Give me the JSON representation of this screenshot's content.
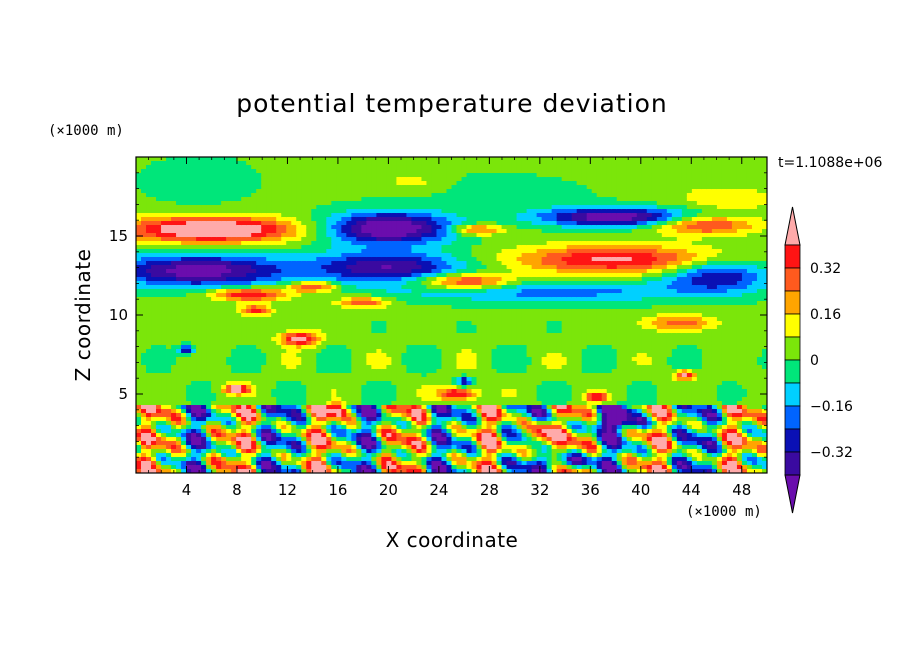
{
  "chart_data": {
    "type": "heatmap",
    "title": "potential temperature deviation",
    "xlabel": "X coordinate",
    "ylabel": "Z coordinate",
    "x_unit": "(×1000 m)",
    "y_unit": "(×1000 m)",
    "time_label": "t=1.1088e+06",
    "xlim": [
      0,
      50
    ],
    "ylim": [
      0,
      20
    ],
    "x_ticks": [
      4,
      8,
      12,
      16,
      20,
      24,
      28,
      32,
      36,
      40,
      44,
      48
    ],
    "x_tick_labels": [
      "4",
      "8",
      "12",
      "16",
      "20",
      "24",
      "28",
      "32",
      "36",
      "40",
      "44",
      "48"
    ],
    "y_ticks": [
      5,
      10,
      15
    ],
    "y_tick_labels": [
      "5",
      "10",
      "15"
    ],
    "colorbar": {
      "levels": [
        -0.4,
        -0.32,
        -0.24,
        -0.16,
        -0.08,
        0,
        0.08,
        0.16,
        0.24,
        0.32,
        0.4
      ],
      "tick_values": [
        0.32,
        0.16,
        0,
        -0.16,
        -0.32
      ],
      "tick_labels": [
        "0.32",
        "0.16",
        "0",
        "−0.16",
        "−0.32"
      ],
      "colors": [
        "#6a0dad",
        "#3a0aa0",
        "#0a10b4",
        "#0064ff",
        "#00d0ff",
        "#00e67a",
        "#7be60a",
        "#ffff00",
        "#ffa500",
        "#ff5a1e",
        "#ff1414",
        "#ffaaaa"
      ],
      "min_color": "#6a0dad",
      "max_color": "#ffaaaa"
    },
    "layers": [
      {
        "z": 18.5,
        "description_free": true,
        "base": 0.08
      },
      {
        "z": 16.0,
        "base": 0.36
      },
      {
        "z": 15.0,
        "base": 0.3
      },
      {
        "z": 13.5,
        "base": -0.34
      },
      {
        "z": 12.0,
        "base": -0.26
      },
      {
        "z": 11.0,
        "base": 0.2
      },
      {
        "z": 8.0,
        "base": 0.04
      },
      {
        "z": 5.0,
        "base": -0.04
      },
      {
        "z": 2.0,
        "base": 0.0
      }
    ]
  }
}
